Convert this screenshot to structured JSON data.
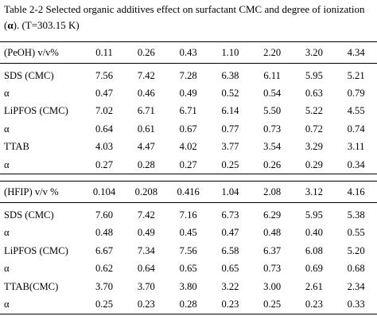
{
  "caption": {
    "line1": "Table 2-2 Selected organic additives effect on surfactant CMC and degree of ionization",
    "line2_open": "(",
    "line2_alpha": "α",
    "line2_rest": "). (T=303.15 K)"
  },
  "section1": {
    "header_label": "(PeOH) v/v%",
    "header_values": [
      "0.11",
      "0.26",
      "0.43",
      "1.10",
      "2.20",
      "3.20",
      "4.34"
    ],
    "rows": [
      {
        "label": "SDS (CMC)",
        "values": [
          "7.56",
          "7.42",
          "7.28",
          "6.38",
          "6.11",
          "5.95",
          "5.21"
        ]
      },
      {
        "label": "α",
        "values": [
          "0.47",
          "0.46",
          "0.49",
          "0.52",
          "0.54",
          "0.63",
          "0.79"
        ]
      },
      {
        "label": "LiPFOS (CMC)",
        "values": [
          "7.02",
          "6.71",
          "6.71",
          "6.14",
          "5.50",
          "5.22",
          "4.55"
        ]
      },
      {
        "label": "α",
        "values": [
          "0.64",
          "0.61",
          "0.67",
          "0.77",
          "0.73",
          "0.72",
          "0.74"
        ]
      },
      {
        "label": "TTAB",
        "values": [
          "4.03",
          "4.47",
          "4.02",
          "3.77",
          "3.54",
          "3.29",
          "3.11"
        ]
      },
      {
        "label": "α",
        "values": [
          "0.27",
          "0.28",
          "0.27",
          "0.25",
          "0.26",
          "0.29",
          "0.34"
        ]
      }
    ]
  },
  "section2": {
    "header_label": "(HFIP) v/v %",
    "header_values": [
      "0.104",
      "0.208",
      "0.416",
      "1.04",
      "2.08",
      "3.12",
      "4.16"
    ],
    "rows": [
      {
        "label": "SDS (CMC)",
        "values": [
          "7.60",
          "7.42",
          "7.16",
          "6.73",
          "6.29",
          "5.95",
          "5.38"
        ]
      },
      {
        "label": "α",
        "values": [
          "0.48",
          "0.49",
          "0.45",
          "0.47",
          "0.48",
          "0.40",
          "0.55"
        ]
      },
      {
        "label": "LiPFOS (CMC)",
        "values": [
          "6.67",
          "7.34",
          "7.56",
          "6.58",
          "6.37",
          "6.08",
          "5.20"
        ]
      },
      {
        "label": "α",
        "values": [
          "0.62",
          "0.64",
          "0.65",
          "0.65",
          "0.73",
          "0.69",
          "0.68"
        ]
      },
      {
        "label": "TTAB(CMC)",
        "values": [
          "3.70",
          "3.70",
          "3.80",
          "3.22",
          "3.00",
          "2.61",
          "2.34"
        ]
      },
      {
        "label": "α",
        "values": [
          "0.25",
          "0.23",
          "0.28",
          "0.23",
          "0.25",
          "0.23",
          "0.33"
        ]
      }
    ]
  }
}
